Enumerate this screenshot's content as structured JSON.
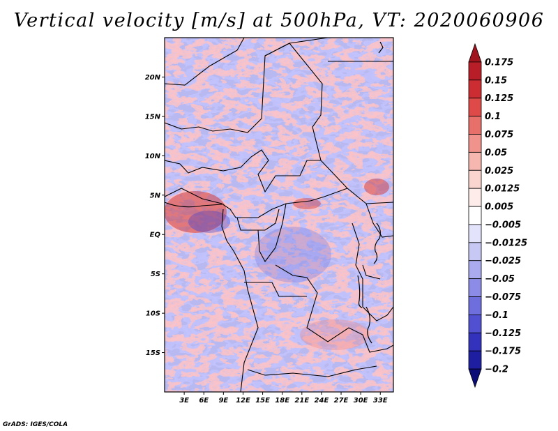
{
  "title": "Vertical velocity [m/s] at 500hPa, VT: 2020060906",
  "credit": "GrADS: IGES/COLA",
  "map": {
    "lat_range": [
      -20,
      25
    ],
    "lon_range": [
      0,
      35
    ],
    "lat_ticks": [
      {
        "value": 20,
        "label": "20N"
      },
      {
        "value": 15,
        "label": "15N"
      },
      {
        "value": 10,
        "label": "10N"
      },
      {
        "value": 5,
        "label": "5N"
      },
      {
        "value": 0,
        "label": "EQ"
      },
      {
        "value": -5,
        "label": "5S"
      },
      {
        "value": -10,
        "label": "10S"
      },
      {
        "value": -15,
        "label": "15S"
      }
    ],
    "lon_ticks": [
      {
        "value": 3,
        "label": "3E"
      },
      {
        "value": 6,
        "label": "6E"
      },
      {
        "value": 9,
        "label": "9E"
      },
      {
        "value": 12,
        "label": "12E"
      },
      {
        "value": 15,
        "label": "15E"
      },
      {
        "value": 18,
        "label": "18E"
      },
      {
        "value": 21,
        "label": "21E"
      },
      {
        "value": 24,
        "label": "24E"
      },
      {
        "value": 27,
        "label": "27E"
      },
      {
        "value": 30,
        "label": "30E"
      },
      {
        "value": 33,
        "label": "33E"
      }
    ]
  },
  "colorbar": {
    "labels": [
      "0.175",
      "0.15",
      "0.125",
      "0.1",
      "0.075",
      "0.05",
      "0.025",
      "0.0125",
      "0.005",
      "−0.005",
      "−0.0125",
      "−0.025",
      "−0.05",
      "−0.075",
      "−0.1",
      "−0.125",
      "−0.175",
      "−0.2"
    ],
    "colors": [
      "#a0141e",
      "#b81e28",
      "#cc2d33",
      "#de4a48",
      "#e8706a",
      "#ef938c",
      "#f5b7b0",
      "#fad4cf",
      "#fdecea",
      "#ffffff",
      "#e3e3fb",
      "#c8c8f5",
      "#aaaaee",
      "#8c8ce6",
      "#6e6edd",
      "#5050d0",
      "#3232bd",
      "#1e1ea0",
      "#0c0c78"
    ]
  }
}
